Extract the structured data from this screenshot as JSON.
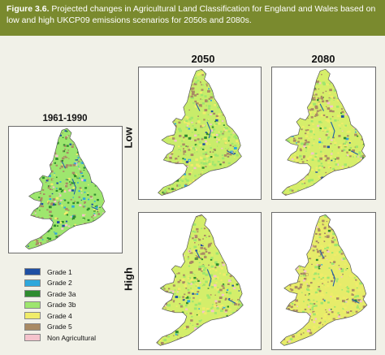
{
  "figure": {
    "label": "Figure 3.6.",
    "caption": " Projected changes in Agricultural Land Classification for England and Wales based on low and high UKCP09 emissions scenarios for 2050s and 2080s."
  },
  "columns": {
    "baseline": "1961-1990",
    "c2050": "2050",
    "c2080": "2080"
  },
  "rows": {
    "low": "Low",
    "high": "High"
  },
  "legend": [
    {
      "label": "Grade 1",
      "color": "#1f4fa3"
    },
    {
      "label": "Grade 2",
      "color": "#2ea8dc"
    },
    {
      "label": "Grade 3a",
      "color": "#2e8b2e"
    },
    {
      "label": "Grade 3b",
      "color": "#9ee66e"
    },
    {
      "label": "Grade 4",
      "color": "#f0ec6a"
    },
    {
      "label": "Grade 5",
      "color": "#a98a64"
    },
    {
      "label": "Non Agricultural",
      "color": "#f5c3cc"
    }
  ],
  "colors": {
    "caption_bg": "#7a8a2e",
    "panel_bg": "#f1f1e8",
    "water": "#1f5fa8"
  }
}
